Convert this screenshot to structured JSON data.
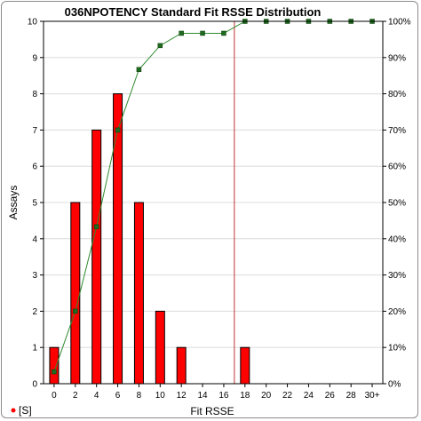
{
  "chart_data": {
    "type": "bar",
    "title": "036NPOTENCY Standard Fit RSSE Distribution",
    "xlabel": "Fit RSSE",
    "ylabel": "Assays",
    "x_tick_labels": [
      "0",
      "2",
      "4",
      "6",
      "8",
      "10",
      "12",
      "14",
      "16",
      "18",
      "20",
      "22",
      "24",
      "26",
      "28",
      "30+"
    ],
    "categories": [
      0,
      2,
      4,
      6,
      8,
      10,
      12,
      14,
      16,
      18,
      20,
      22,
      24,
      26,
      28,
      30
    ],
    "values": [
      1,
      5,
      7,
      8,
      5,
      2,
      1,
      0,
      0,
      1,
      0,
      0,
      0,
      0,
      0,
      0
    ],
    "ylim": [
      0,
      10
    ],
    "y_ticks": [
      "0",
      "1",
      "2",
      "3",
      "4",
      "5",
      "6",
      "7",
      "8",
      "9",
      "10"
    ],
    "y2_ticks": [
      "0%",
      "10%",
      "20%",
      "30%",
      "40%",
      "50%",
      "60%",
      "70%",
      "80%",
      "90%",
      "100%"
    ],
    "cumulative_percent": [
      3.3,
      20,
      43.3,
      70,
      86.7,
      93.3,
      96.7,
      96.7,
      96.7,
      100,
      100,
      100,
      100,
      100,
      100,
      100
    ],
    "reference_line_x": 17,
    "legend": {
      "label": "[S]",
      "placement": "bottom-left"
    },
    "colors": {
      "bar_fill": "#ff0000",
      "bar_stroke": "#000000",
      "cumulative_line": "#2e8b2e",
      "cumulative_marker": "#1f6b1f",
      "reference_line": "#c03030",
      "grid": "#dcdcdc",
      "legend_marker": "#ff0000"
    }
  }
}
